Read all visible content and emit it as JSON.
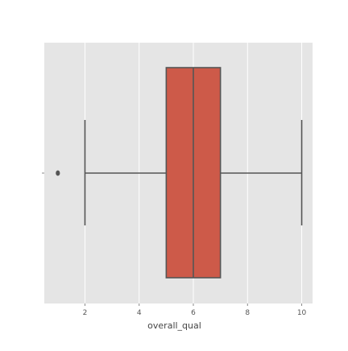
{
  "chart_data": {
    "type": "boxplot",
    "title": "",
    "xlabel": "overall_qual",
    "ylabel": "",
    "xlim": [
      0.5,
      10.4
    ],
    "xticks": [
      2,
      4,
      6,
      8,
      10
    ],
    "xtick_labels": [
      "2",
      "4",
      "6",
      "8",
      "10"
    ],
    "grid": true,
    "orientation": "horizontal",
    "box": {
      "whisker_low": 2,
      "q1": 5,
      "median": 6,
      "q3": 7,
      "whisker_high": 10,
      "outliers": [
        1
      ]
    },
    "colors": {
      "background": "#e5e5e5",
      "grid": "#ffffff",
      "box_fill": "#cd5a49",
      "box_edge": "#555555",
      "text": "#555555"
    }
  }
}
